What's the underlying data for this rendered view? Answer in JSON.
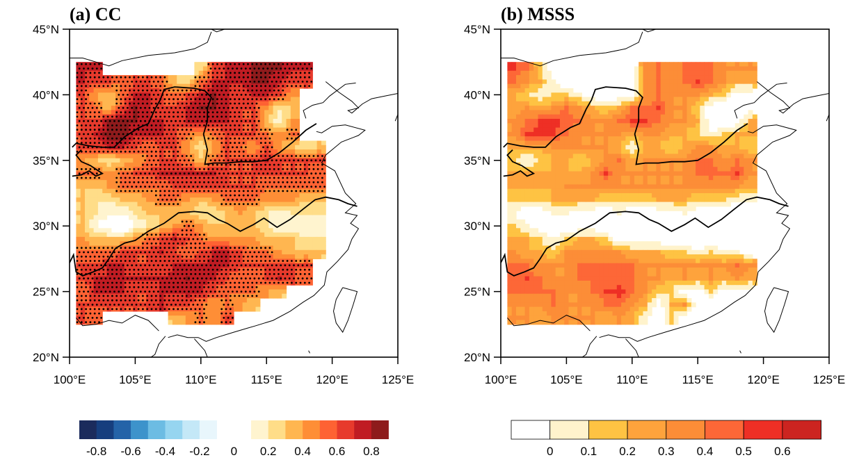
{
  "chart_data": [
    {
      "type": "heatmap",
      "panel": "a",
      "title": "(a) CC",
      "xlabel": "",
      "ylabel": "",
      "xlim": [
        100,
        125
      ],
      "ylim": [
        20,
        45
      ],
      "x_ticks": [
        "100°E",
        "105°E",
        "110°E",
        "115°E",
        "120°E",
        "125°E"
      ],
      "y_ticks": [
        "20°N",
        "25°N",
        "30°N",
        "35°N",
        "40°N",
        "45°N"
      ],
      "x_tick_values": [
        100,
        105,
        110,
        115,
        120,
        125
      ],
      "y_tick_values": [
        20,
        25,
        30,
        35,
        40,
        45
      ],
      "stippling": "significant grid points marked with black dots",
      "grid_lon": [
        101,
        102,
        103,
        104,
        105,
        106,
        107,
        108,
        109,
        110,
        111,
        112,
        113,
        114,
        115,
        116,
        117,
        118,
        119
      ],
      "grid_lat": [
        42,
        41,
        40,
        39,
        38,
        37,
        36,
        35,
        34,
        33,
        32,
        31,
        30,
        29,
        28,
        27,
        26,
        25,
        24,
        23
      ],
      "values": [
        [
          0.7,
          0.7,
          null,
          null,
          null,
          null,
          null,
          null,
          null,
          0.2,
          0.6,
          0.7,
          0.7,
          0.8,
          0.85,
          0.8,
          0.7,
          0.7,
          null
        ],
        [
          0.7,
          0.6,
          0.6,
          0.5,
          0.6,
          0.6,
          0.5,
          0.3,
          0.2,
          0.5,
          0.7,
          0.7,
          0.7,
          0.8,
          0.8,
          0.7,
          0.6,
          0.6,
          null
        ],
        [
          0.6,
          0.4,
          0.3,
          0.5,
          0.7,
          0.7,
          0.6,
          0.5,
          0.6,
          0.7,
          0.8,
          0.7,
          0.6,
          0.7,
          0.7,
          0.6,
          0.4,
          null,
          null
        ],
        [
          0.6,
          0.5,
          0.3,
          0.6,
          0.8,
          0.7,
          0.6,
          0.6,
          0.7,
          0.8,
          0.8,
          0.7,
          0.6,
          0.6,
          0.4,
          0.2,
          0.3,
          null,
          null
        ],
        [
          0.6,
          0.6,
          0.8,
          0.85,
          0.8,
          0.7,
          0.7,
          0.6,
          0.7,
          0.7,
          0.7,
          0.7,
          0.6,
          0.6,
          0.3,
          0.1,
          0.4,
          null,
          null
        ],
        [
          0.6,
          0.7,
          0.85,
          0.85,
          0.7,
          0.7,
          0.7,
          0.6,
          0.5,
          0.4,
          0.5,
          0.6,
          0.6,
          0.6,
          0.5,
          0.4,
          0.5,
          null,
          null
        ],
        [
          0.6,
          0.6,
          0.7,
          0.7,
          0.6,
          0.5,
          0.6,
          0.6,
          0.4,
          0.2,
          0.4,
          0.6,
          0.5,
          0.4,
          0.6,
          0.4,
          0.3,
          0.2,
          0.3
        ],
        [
          0.4,
          0.3,
          0.2,
          0.3,
          0.4,
          0.5,
          0.6,
          0.6,
          0.5,
          0.3,
          0.5,
          0.6,
          0.6,
          0.6,
          0.7,
          0.6,
          0.6,
          0.6,
          0.6
        ],
        [
          0.5,
          0.5,
          0.4,
          0.5,
          0.6,
          0.6,
          0.7,
          0.7,
          0.7,
          0.7,
          0.7,
          0.6,
          0.6,
          0.6,
          0.6,
          0.6,
          0.6,
          0.6,
          0.5
        ],
        [
          0.3,
          0.3,
          0.4,
          0.5,
          0.5,
          0.5,
          0.5,
          0.6,
          0.6,
          0.6,
          0.6,
          0.6,
          0.6,
          0.6,
          0.5,
          0.5,
          0.5,
          0.5,
          0.5
        ],
        [
          0.3,
          0.2,
          0.2,
          0.3,
          0.3,
          0.4,
          0.5,
          0.5,
          0.4,
          0.3,
          0.4,
          0.5,
          0.5,
          0.5,
          0.4,
          0.4,
          0.4,
          0.3,
          0.3
        ],
        [
          0.3,
          0.2,
          0.1,
          0.1,
          0.2,
          0.3,
          0.3,
          0.3,
          0.3,
          0.2,
          0.2,
          0.3,
          0.4,
          0.3,
          0.2,
          0.1,
          0.2,
          0.2,
          0.2
        ],
        [
          0.3,
          0.1,
          0.0,
          -0.1,
          0.1,
          0.2,
          0.3,
          0.4,
          0.5,
          0.4,
          0.3,
          0.3,
          0.3,
          0.3,
          0.2,
          0.1,
          0.1,
          0.1,
          0.1
        ],
        [
          0.4,
          0.3,
          0.3,
          0.3,
          0.4,
          0.5,
          0.6,
          0.7,
          0.6,
          0.5,
          0.4,
          0.4,
          0.4,
          0.4,
          0.3,
          0.3,
          0.3,
          0.2,
          0.2
        ],
        [
          0.5,
          0.5,
          0.5,
          0.6,
          0.6,
          0.6,
          0.7,
          0.6,
          0.5,
          0.6,
          0.7,
          0.7,
          0.6,
          0.5,
          0.5,
          0.4,
          0.3,
          0.3,
          0.3
        ],
        [
          0.6,
          0.6,
          0.7,
          0.7,
          0.6,
          0.6,
          0.6,
          0.7,
          0.7,
          0.7,
          0.75,
          0.7,
          0.6,
          0.6,
          0.6,
          0.6,
          0.6,
          0.6,
          null
        ],
        [
          0.6,
          0.7,
          0.7,
          0.7,
          0.7,
          0.7,
          0.7,
          0.75,
          0.8,
          0.75,
          0.7,
          0.6,
          0.5,
          0.5,
          0.6,
          0.7,
          0.6,
          0.5,
          null
        ],
        [
          0.5,
          0.7,
          0.7,
          0.7,
          0.6,
          0.6,
          0.7,
          0.7,
          0.75,
          0.7,
          0.6,
          0.5,
          0.5,
          0.5,
          0.4,
          0.3,
          null,
          null,
          null
        ],
        [
          0.6,
          0.6,
          0.6,
          0.6,
          0.6,
          0.6,
          0.7,
          0.6,
          0.6,
          0.5,
          0.4,
          0.5,
          0.4,
          0.3,
          null,
          null,
          null,
          null,
          null
        ],
        [
          0.6,
          0.5,
          null,
          null,
          null,
          null,
          null,
          0.3,
          0.4,
          0.5,
          0.4,
          0.6,
          null,
          null,
          null,
          null,
          null,
          null,
          null
        ]
      ],
      "colorbar": {
        "levels": [
          "-0.8",
          "-0.6",
          "-0.4",
          "-0.2",
          "0",
          "0.2",
          "0.4",
          "0.6",
          "0.8"
        ],
        "colors": [
          "#1b2b5c",
          "#163e7e",
          "#2463a8",
          "#3d93cb",
          "#6cbce3",
          "#96d5f0",
          "#c4e8f7",
          "#e8f6fc",
          "#ffffff",
          "#fff4cf",
          "#ffdd88",
          "#ffb650",
          "#fe8e36",
          "#fe6233",
          "#e73a2c",
          "#c01c23",
          "#8e1b1c"
        ],
        "bounds": [
          -0.9,
          -0.8,
          -0.7,
          -0.6,
          -0.5,
          -0.4,
          -0.3,
          -0.2,
          -0.1,
          0.1,
          0.2,
          0.3,
          0.4,
          0.5,
          0.6,
          0.7,
          0.8,
          0.9
        ]
      }
    },
    {
      "type": "heatmap",
      "panel": "b",
      "title": "(b) MSSS",
      "xlabel": "",
      "ylabel": "",
      "xlim": [
        100,
        125
      ],
      "ylim": [
        20,
        45
      ],
      "x_ticks": [
        "100°E",
        "105°E",
        "110°E",
        "115°E",
        "120°E",
        "125°E"
      ],
      "y_ticks": [
        "20°N",
        "25°N",
        "30°N",
        "35°N",
        "40°N",
        "45°N"
      ],
      "x_tick_values": [
        100,
        105,
        110,
        115,
        120,
        125
      ],
      "y_tick_values": [
        20,
        25,
        30,
        35,
        40,
        45
      ],
      "grid_lon": [
        101,
        102,
        103,
        104,
        105,
        106,
        107,
        108,
        109,
        110,
        111,
        112,
        113,
        114,
        115,
        116,
        117,
        118,
        119
      ],
      "grid_lat": [
        42,
        41,
        40,
        39,
        38,
        37,
        36,
        35,
        34,
        33,
        32,
        31,
        30,
        29,
        28,
        27,
        26,
        25,
        24,
        23
      ],
      "values": [
        [
          0.5,
          0.4,
          0.1,
          -0.1,
          -0.1,
          -0.1,
          -0.1,
          -0.1,
          -0.1,
          -0.1,
          0.3,
          0.4,
          0.3,
          0.4,
          0.45,
          0.4,
          0.3,
          0.3,
          0.3
        ],
        [
          0.4,
          0.3,
          0.2,
          0.0,
          -0.1,
          -0.1,
          -0.1,
          -0.1,
          -0.1,
          -0.1,
          0.3,
          0.4,
          0.3,
          0.4,
          0.5,
          0.4,
          0.3,
          0.2,
          0.2
        ],
        [
          0.2,
          0.1,
          0.0,
          0.1,
          0.1,
          0.0,
          -0.1,
          -0.1,
          -0.1,
          -0.1,
          0.3,
          0.4,
          0.3,
          0.3,
          0.3,
          0.2,
          0.1,
          -0.1,
          -0.1
        ],
        [
          0.2,
          0.3,
          0.2,
          0.3,
          0.4,
          0.3,
          0.2,
          0.1,
          0.2,
          0.4,
          0.4,
          0.5,
          0.3,
          0.3,
          0.1,
          -0.1,
          -0.1,
          -0.1,
          -0.1
        ],
        [
          0.3,
          0.4,
          0.5,
          0.55,
          0.45,
          0.4,
          0.3,
          0.3,
          0.4,
          0.5,
          0.5,
          0.4,
          0.3,
          0.3,
          0.2,
          -0.1,
          -0.1,
          -0.1,
          0.2
        ],
        [
          0.3,
          0.5,
          0.55,
          0.5,
          0.4,
          0.3,
          0.3,
          0.3,
          0.3,
          0.2,
          0.3,
          0.3,
          0.2,
          0.2,
          0.1,
          0.0,
          0.1,
          0.2,
          0.2
        ],
        [
          0.2,
          0.2,
          0.2,
          0.3,
          0.3,
          0.3,
          0.3,
          0.3,
          0.2,
          0.0,
          0.2,
          0.2,
          0.1,
          0.2,
          0.3,
          0.3,
          0.2,
          0.2,
          0.1
        ],
        [
          0.1,
          0.0,
          0.1,
          0.2,
          0.2,
          0.1,
          0.2,
          0.3,
          0.4,
          0.2,
          0.3,
          0.3,
          0.3,
          0.3,
          0.4,
          0.4,
          0.3,
          0.4,
          0.3
        ],
        [
          0.2,
          0.2,
          0.2,
          0.2,
          0.2,
          0.2,
          0.3,
          0.5,
          0.3,
          0.3,
          0.3,
          0.3,
          0.3,
          0.3,
          0.4,
          0.45,
          0.4,
          0.5,
          0.3
        ],
        [
          0.2,
          0.2,
          0.2,
          0.2,
          0.3,
          0.3,
          0.3,
          0.3,
          0.3,
          0.3,
          0.3,
          0.3,
          0.3,
          0.3,
          0.3,
          0.3,
          0.3,
          0.3,
          0.2
        ],
        [
          0.1,
          0.1,
          0.1,
          0.2,
          0.2,
          0.2,
          0.2,
          0.1,
          0.1,
          0.1,
          0.1,
          0.2,
          0.2,
          0.2,
          0.1,
          0.1,
          0.1,
          0.0,
          0.0
        ],
        [
          0.0,
          -0.1,
          -0.1,
          0.0,
          0.0,
          -0.1,
          -0.1,
          -0.1,
          0.0,
          -0.1,
          -0.1,
          -0.1,
          -0.1,
          0.0,
          -0.1,
          -0.1,
          -0.1,
          -0.1,
          -0.1
        ],
        [
          0.1,
          0.0,
          -0.1,
          -0.1,
          -0.1,
          -0.1,
          -0.1,
          -0.1,
          -0.1,
          -0.1,
          -0.1,
          -0.1,
          -0.1,
          -0.1,
          -0.1,
          -0.1,
          -0.1,
          -0.1,
          -0.1
        ],
        [
          0.2,
          0.2,
          0.1,
          0.0,
          0.1,
          0.2,
          0.2,
          0.1,
          -0.1,
          -0.1,
          -0.1,
          -0.1,
          -0.1,
          -0.1,
          -0.1,
          -0.1,
          -0.1,
          -0.1,
          -0.1
        ],
        [
          0.3,
          0.2,
          0.2,
          0.1,
          0.3,
          0.3,
          0.3,
          0.3,
          0.3,
          0.2,
          0.2,
          0.2,
          0.1,
          0.1,
          0.0,
          0.1,
          0.0,
          0.0,
          -0.1
        ],
        [
          0.4,
          0.4,
          0.3,
          0.3,
          0.3,
          0.4,
          0.4,
          0.4,
          0.4,
          0.4,
          0.3,
          0.3,
          0.3,
          0.3,
          0.3,
          0.3,
          0.3,
          0.4,
          0.3
        ],
        [
          0.4,
          0.5,
          0.4,
          0.3,
          0.3,
          0.4,
          0.4,
          0.4,
          0.4,
          0.4,
          0.3,
          0.3,
          0.2,
          0.3,
          0.2,
          0.3,
          0.2,
          0.3,
          0.2
        ],
        [
          0.4,
          0.4,
          0.4,
          0.4,
          0.3,
          0.3,
          0.4,
          0.5,
          0.55,
          0.4,
          0.3,
          0.1,
          0.1,
          -0.1,
          -0.1,
          0.1,
          -0.1,
          -0.1,
          -0.1
        ],
        [
          0.3,
          0.3,
          0.3,
          0.4,
          0.3,
          0.3,
          0.3,
          0.4,
          0.4,
          0.3,
          0.2,
          -0.1,
          0.2,
          0.3,
          -0.1,
          -0.1,
          -0.1,
          -0.1,
          -0.1
        ],
        [
          0.3,
          0.3,
          0.2,
          0.3,
          0.3,
          0.3,
          0.3,
          0.2,
          0.3,
          0.2,
          0.0,
          -0.1,
          0.1,
          -0.1,
          -0.1,
          -0.1,
          -0.1,
          -0.1,
          -0.1
        ]
      ],
      "colorbar": {
        "levels": [
          "0",
          "0.1",
          "0.2",
          "0.3",
          "0.4",
          "0.5",
          "0.6"
        ],
        "colors": [
          "#ffffff",
          "#fff3cc",
          "#fec343",
          "#fea33c",
          "#fc8d37",
          "#fd6737",
          "#ee2f25",
          "#cc2420"
        ],
        "bounds": [
          -0.1,
          0.0,
          0.1,
          0.2,
          0.3,
          0.4,
          0.5,
          0.6,
          0.7
        ]
      }
    }
  ],
  "panels": {
    "a_title": "(a) CC",
    "b_title": "(b) MSSS"
  }
}
